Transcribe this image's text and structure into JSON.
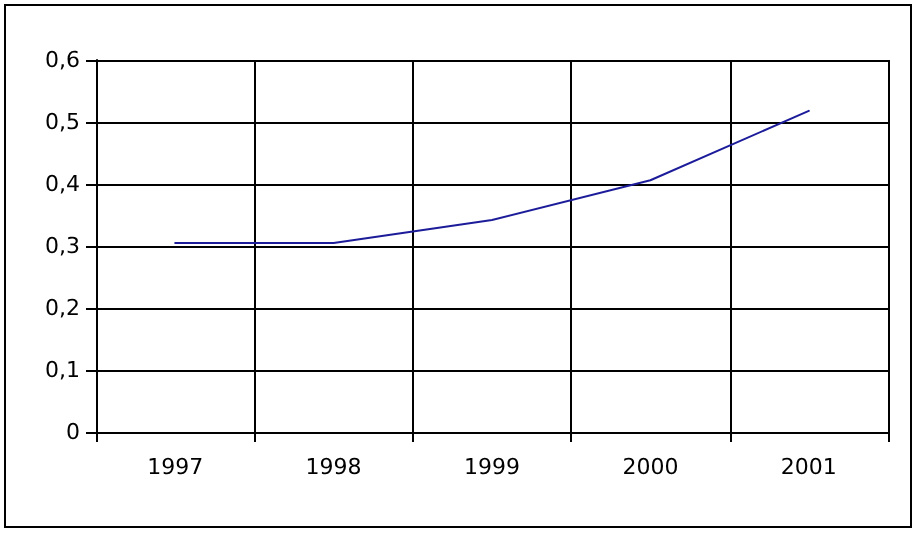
{
  "chart_data": {
    "type": "line",
    "categories": [
      "1997",
      "1998",
      "1999",
      "2000",
      "2001"
    ],
    "series": [
      {
        "color": "#1c1c9a",
        "values": [
          0.305,
          0.305,
          0.342,
          0.406,
          0.518
        ]
      }
    ],
    "ylim": [
      0,
      0.6
    ],
    "yticks": [
      0,
      {
        "value": 0.1,
        "label": "0,1"
      },
      {
        "value": 0.2,
        "label": "0,2"
      },
      {
        "value": 0.3,
        "label": "0,3"
      },
      {
        "value": 0.4,
        "label": "0,4"
      },
      {
        "value": 0.5,
        "label": "0,5"
      },
      {
        "value": 0.6,
        "label": "0,6"
      }
    ],
    "grid": true,
    "marker": "none",
    "line_style": "solid"
  }
}
